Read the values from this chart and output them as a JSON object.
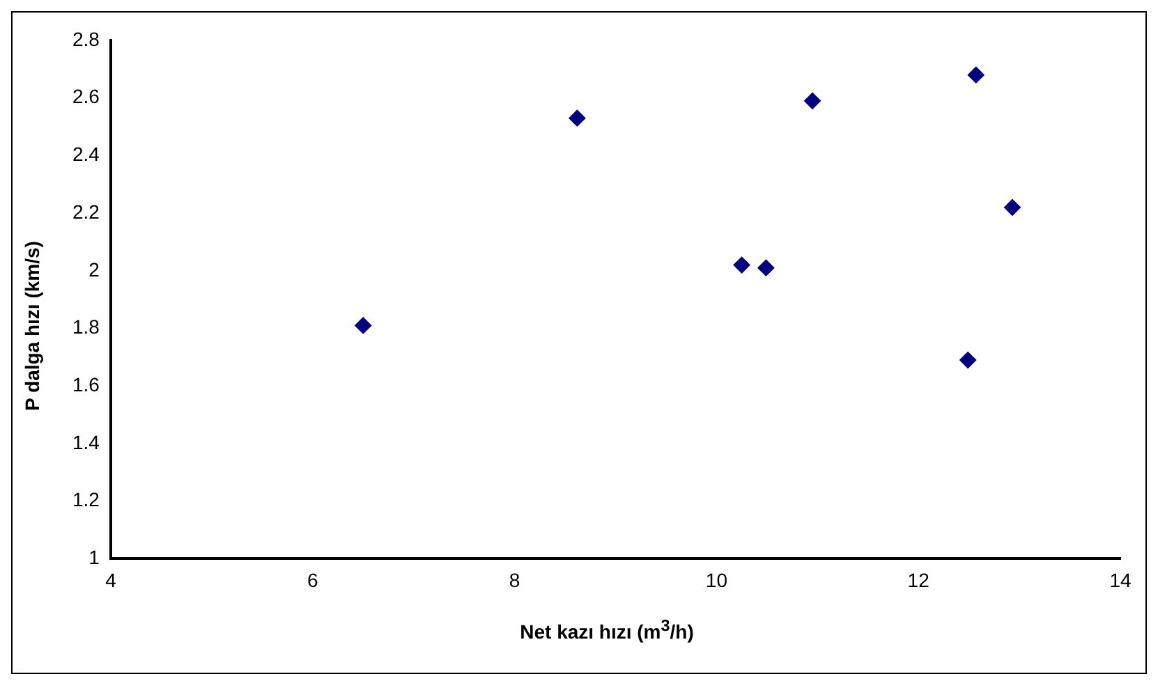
{
  "chart_data": {
    "type": "scatter",
    "xlabel": "Net kazı hızı (m$^{3}$/h)",
    "ylabel": "P dalga hızı (km/s)",
    "x": [
      6.5,
      8.62,
      10.25,
      10.49,
      10.95,
      12.57,
      12.93,
      12.49
    ],
    "series": [
      {
        "color": "#000080",
        "values": [
          1.81,
          2.53,
          2.02,
          2.01,
          2.59,
          2.68,
          2.22,
          1.69
        ]
      }
    ],
    "xlim": [
      4,
      14
    ],
    "xticks": [
      4,
      6,
      8,
      10,
      12,
      14
    ],
    "ylim": [
      1,
      2.8
    ],
    "yticks": [
      1,
      1.2,
      1.4,
      1.6,
      1.8,
      2,
      2.2,
      2.4,
      2.6,
      2.8
    ],
    "grid": false,
    "legend": false,
    "marker": "diamond"
  }
}
